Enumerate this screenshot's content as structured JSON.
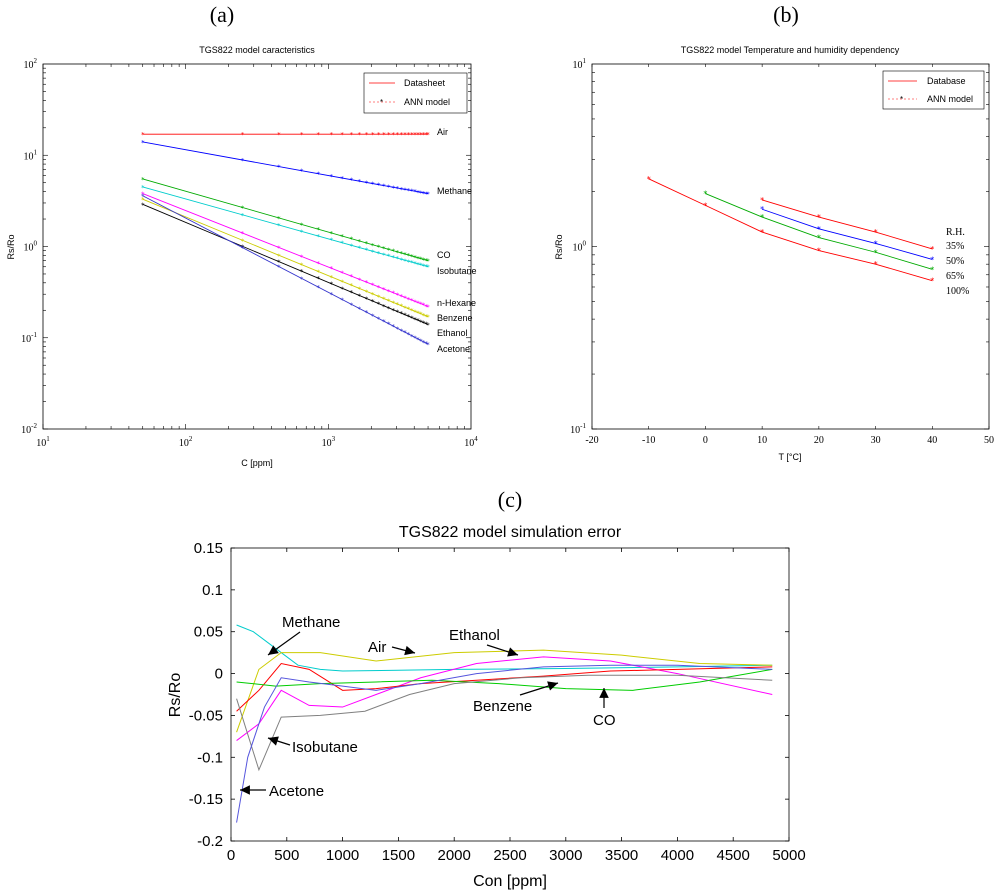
{
  "panels": {
    "a_label": "(a)",
    "b_label": "(b)",
    "c_label": "(c)"
  },
  "colors": {
    "air": "#ff0000",
    "methane": "#0000ff",
    "co": "#00aa00",
    "isobutane": "#00cccc",
    "hexane": "#ff00ff",
    "benzene": "#cccc00",
    "ethanol": "#000000",
    "acetone": "#3333cc",
    "grey": "#808080"
  },
  "chart_data": [
    {
      "type": "line",
      "id": "a",
      "title": "TGS822 model caracteristics",
      "xlabel": "C [ppm]",
      "ylabel": "Rs/Ro",
      "xscale": "log",
      "yscale": "log",
      "xlim": [
        10,
        10000
      ],
      "ylim": [
        0.01,
        100
      ],
      "x_tick_labels": [
        {
          "base": "10",
          "exp": "1"
        },
        {
          "base": "10",
          "exp": "2"
        },
        {
          "base": "10",
          "exp": "3"
        },
        {
          "base": "10",
          "exp": "4"
        }
      ],
      "y_tick_labels": [
        {
          "base": "10",
          "exp": "2"
        },
        {
          "base": "10",
          "exp": "1"
        },
        {
          "base": "10",
          "exp": "0"
        },
        {
          "base": "10",
          "exp": "-1"
        },
        {
          "base": "10",
          "exp": "-2"
        }
      ],
      "legend": {
        "position": "top-right",
        "entries": [
          "Datasheet",
          "ANN model"
        ]
      },
      "x_range": [
        50,
        5000
      ],
      "series": [
        {
          "name": "Air",
          "color": "#ff0000",
          "y_start": 17,
          "y_end": 17
        },
        {
          "name": "Methane",
          "color": "#0000ff",
          "y_start": 14,
          "y_end": 3.8
        },
        {
          "name": "CO",
          "color": "#00aa00",
          "y_start": 5.5,
          "y_end": 0.7
        },
        {
          "name": "Isobutane",
          "color": "#00cccc",
          "y_start": 4.5,
          "y_end": 0.6
        },
        {
          "name": "n-Hexane",
          "color": "#ff00ff",
          "y_start": 3.8,
          "y_end": 0.22
        },
        {
          "name": "Benzene",
          "color": "#cccc00",
          "y_start": 3.3,
          "y_end": 0.17
        },
        {
          "name": "Ethanol",
          "color": "#000000",
          "y_start": 2.9,
          "y_end": 0.14
        },
        {
          "name": "Acetone",
          "color": "#3333cc",
          "y_start": 3.6,
          "y_end": 0.085
        }
      ]
    },
    {
      "type": "line",
      "id": "b",
      "title": "TGS822 model Temperature and humidity dependency",
      "xlabel": "T [°C]",
      "ylabel": "Rs/Ro",
      "yscale": "log",
      "xlim": [
        -20,
        50
      ],
      "ylim": [
        0.1,
        10
      ],
      "x_ticks": [
        "-20",
        "-10",
        "0",
        "10",
        "20",
        "30",
        "40",
        "50"
      ],
      "y_tick_labels": [
        {
          "base": "10",
          "exp": "1"
        },
        {
          "base": "10",
          "exp": "0"
        },
        {
          "base": "10",
          "exp": "-1"
        }
      ],
      "legend": {
        "position": "top-right",
        "entries": [
          "Database",
          "ANN model"
        ]
      },
      "rh_title": "R.H.",
      "series": [
        {
          "name": "35%",
          "color": "#ff0000",
          "x": [
            10,
            20,
            30,
            40
          ],
          "y": [
            1.8,
            1.45,
            1.2,
            0.97
          ]
        },
        {
          "name": "50%",
          "color": "#0000ff",
          "x": [
            10,
            20,
            30,
            40
          ],
          "y": [
            1.6,
            1.25,
            1.04,
            0.85
          ]
        },
        {
          "name": "65%",
          "color": "#00aa00",
          "x": [
            0,
            10,
            20,
            30,
            40
          ],
          "y": [
            1.95,
            1.45,
            1.12,
            0.93,
            0.75
          ]
        },
        {
          "name": "100%",
          "color": "#ff0000",
          "x": [
            -10,
            0,
            10,
            20,
            30,
            40
          ],
          "y": [
            2.35,
            1.68,
            1.2,
            0.95,
            0.8,
            0.65
          ]
        }
      ]
    },
    {
      "type": "line",
      "id": "c",
      "title": "TGS822 model simulation error",
      "xlabel": "Con [ppm]",
      "ylabel": "Rs/Ro",
      "xlim": [
        0,
        5000
      ],
      "ylim": [
        -0.2,
        0.15
      ],
      "x_ticks": [
        "0",
        "500",
        "1000",
        "1500",
        "2000",
        "2500",
        "3000",
        "3500",
        "4000",
        "4500",
        "5000"
      ],
      "y_ticks": [
        "0.15",
        "0.1",
        "0.05",
        "0",
        "-0.05",
        "-0.1",
        "-0.15",
        "-0.2"
      ],
      "annotations": [
        "Methane",
        "Air",
        "Ethanol",
        "Benzene",
        "CO",
        "Isobutane",
        "Acetone"
      ],
      "series": [
        {
          "name": "Methane",
          "color": "#00cccc",
          "x": [
            50,
            200,
            400,
            600,
            800,
            1000,
            1500,
            2000,
            3000,
            4000,
            4850
          ],
          "y": [
            0.058,
            0.05,
            0.03,
            0.01,
            0.005,
            0.003,
            0.004,
            0.005,
            0.006,
            0.008,
            0.01
          ]
        },
        {
          "name": "Air",
          "color": "#cccc00",
          "x": [
            50,
            250,
            450,
            800,
            1300,
            2000,
            2800,
            3500,
            4200,
            4850
          ],
          "y": [
            -0.07,
            0.005,
            0.025,
            0.025,
            0.015,
            0.025,
            0.028,
            0.022,
            0.012,
            0.01
          ]
        },
        {
          "name": "Ethanol",
          "color": "#ff00ff",
          "x": [
            50,
            250,
            450,
            700,
            1000,
            1300,
            1700,
            2200,
            2800,
            3400,
            4000,
            4850
          ],
          "y": [
            -0.08,
            -0.06,
            -0.02,
            -0.038,
            -0.04,
            -0.025,
            -0.005,
            0.012,
            0.02,
            0.015,
            0.0,
            -0.025
          ]
        },
        {
          "name": "Benzene",
          "color": "#ff0000",
          "x": [
            50,
            250,
            450,
            700,
            1000,
            1300,
            1700,
            2200,
            2800,
            3400,
            4000,
            4850
          ],
          "y": [
            -0.045,
            -0.02,
            0.012,
            0.005,
            -0.02,
            -0.018,
            -0.012,
            -0.008,
            -0.003,
            0.003,
            0.005,
            0.008
          ]
        },
        {
          "name": "CO",
          "color": "#00cc00",
          "x": [
            50,
            400,
            800,
            1300,
            1800,
            2400,
            3000,
            3600,
            4200,
            4850
          ],
          "y": [
            -0.01,
            -0.015,
            -0.012,
            -0.01,
            -0.008,
            -0.012,
            -0.018,
            -0.02,
            -0.01,
            0.005
          ]
        },
        {
          "name": "Isobutane",
          "color": "#808080",
          "x": [
            50,
            250,
            450,
            800,
            1200,
            1600,
            2000,
            2600,
            3200,
            4000,
            4850
          ],
          "y": [
            -0.03,
            -0.115,
            -0.052,
            -0.05,
            -0.045,
            -0.025,
            -0.012,
            -0.005,
            -0.002,
            -0.002,
            -0.008
          ]
        },
        {
          "name": "Acetone",
          "color": "#5555dd",
          "x": [
            50,
            150,
            300,
            450,
            700,
            1000,
            1300,
            1700,
            2200,
            2800,
            3400,
            4000,
            4850
          ],
          "y": [
            -0.178,
            -0.1,
            -0.04,
            -0.005,
            -0.01,
            -0.015,
            -0.02,
            -0.012,
            0.0,
            0.008,
            0.01,
            0.01,
            0.005
          ]
        }
      ]
    }
  ]
}
